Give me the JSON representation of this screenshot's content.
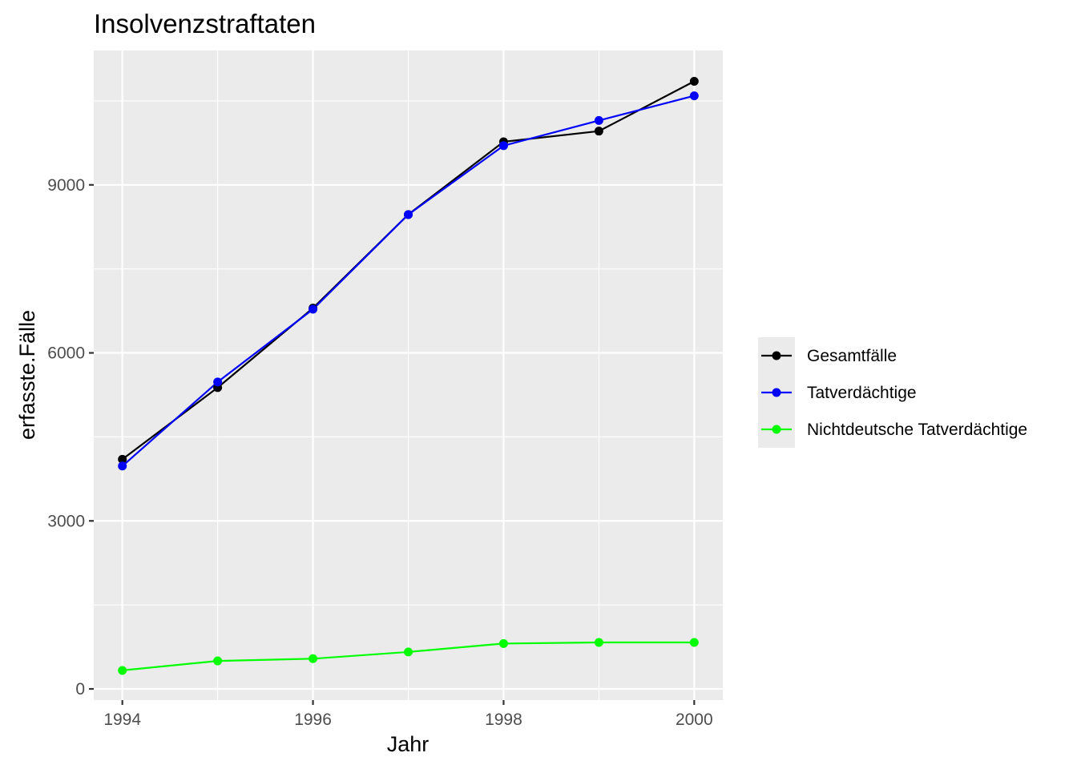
{
  "chart_data": {
    "type": "line",
    "title": "Insolvenzstraftaten",
    "xlabel": "Jahr",
    "ylabel": "erfasste.Fälle",
    "x": [
      1994,
      1995,
      1996,
      1997,
      1998,
      1999,
      2000
    ],
    "xlim": [
      1993.7,
      2000.3
    ],
    "ylim": [
      -200,
      11400
    ],
    "xticks": [
      1994,
      1996,
      1998,
      2000
    ],
    "xtick_labels": [
      "1994",
      "1996",
      "1998",
      "2000"
    ],
    "yticks": [
      0,
      3000,
      6000,
      9000
    ],
    "ytick_labels": [
      "0",
      "3000",
      "6000",
      "9000"
    ],
    "grid": true,
    "legend_position": "right",
    "series": [
      {
        "name": "Gesamtfälle",
        "color": "#000000",
        "values": [
          4100,
          5380,
          6800,
          8470,
          9770,
          9960,
          10850
        ]
      },
      {
        "name": "Tatverdächtige",
        "color": "#0000ff",
        "values": [
          3980,
          5480,
          6780,
          8470,
          9700,
          10150,
          10590
        ]
      },
      {
        "name": "Nichtdeutsche Tatverdächtige",
        "color": "#00ff00",
        "values": [
          330,
          500,
          540,
          660,
          810,
          830,
          830
        ]
      }
    ]
  }
}
